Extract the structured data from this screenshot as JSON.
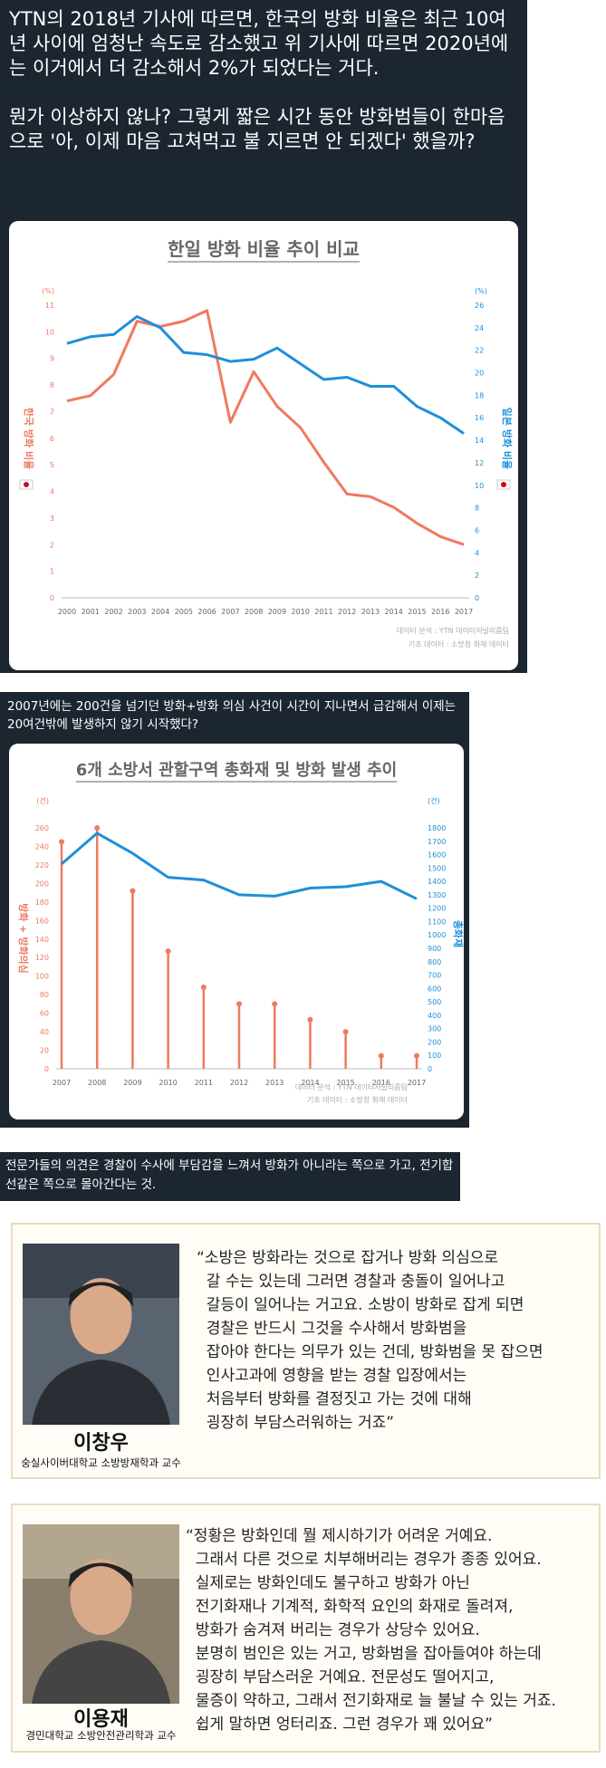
{
  "post1": {
    "paragraphs": [
      "YTN의 2018년 기사에 따르면, 한국의 방화 비율은 최근 10여 년 사이에 엄청난 속도로 감소했고 위 기사에 따르면 2020년에는 이거에서 더 감소해서 2%가 되었다는 거다.",
      "뭔가 이상하지 않나? 그렇게 짧은 시간 동안 방화범들이 한마음으로 '아, 이제 마음 고쳐먹고 불 지르면 안 되겠다' 했을까?"
    ]
  },
  "post2": {
    "text": "2007년에는 200건을 넘기던 방화+방화 의심 사건이 시간이 지나면서 급감해서 이제는 20여건밖에 발생하지 않기 시작했다?"
  },
  "post3": {
    "text": "전문가들의 의견은 경찰이 수사에 부담감을 느껴서 방화가 아니라는 쪽으로 가고, 전기합선같은 쪽으로 몰아간다는 것."
  },
  "chart_data": [
    {
      "type": "line",
      "title": "한일 방화 비율 추이 비교",
      "categories": [
        "2000",
        "2001",
        "2002",
        "2003",
        "2004",
        "2005",
        "2006",
        "2007",
        "2008",
        "2009",
        "2010",
        "2011",
        "2012",
        "2013",
        "2014",
        "2015",
        "2016",
        "2017"
      ],
      "series": [
        {
          "name": "한국 방화 비율",
          "color": "#ee7a5f",
          "axis": "y",
          "values": [
            7.4,
            7.6,
            8.4,
            10.4,
            10.2,
            10.4,
            10.8,
            6.6,
            8.5,
            7.2,
            6.4,
            5.1,
            3.9,
            3.8,
            3.4,
            2.8,
            2.3,
            2.0
          ]
        },
        {
          "name": "일본 방화 비율",
          "color": "#1f8fd8",
          "axis": "y2",
          "values": [
            22.6,
            23.2,
            23.4,
            25.0,
            24.0,
            21.8,
            21.6,
            21.0,
            21.2,
            22.2,
            20.8,
            19.4,
            19.6,
            18.8,
            18.8,
            17.0,
            16.0,
            14.6
          ]
        }
      ],
      "y_unit": "(%)",
      "y2_unit": "(%)",
      "ylim": [
        0,
        11
      ],
      "yticks": [
        0,
        1,
        2,
        3,
        4,
        5,
        6,
        7,
        8,
        9,
        10,
        11
      ],
      "y2lim": [
        0,
        26
      ],
      "y2ticks": [
        0,
        2,
        4,
        6,
        8,
        10,
        12,
        14,
        16,
        18,
        20,
        22,
        24,
        26
      ],
      "source": [
        "데이터 분석 : YTN 데이터저널리즘팀",
        "기초 데이터 : 소방청 화재 데이터"
      ]
    },
    {
      "type": "combo",
      "title": "6개 소방서 관할구역 총화재 및 방화 발생 추이",
      "categories": [
        "2007",
        "2008",
        "2009",
        "2010",
        "2011",
        "2012",
        "2013",
        "2014",
        "2015",
        "2016",
        "2017"
      ],
      "series": [
        {
          "name": "방화 + 방화의심",
          "type": "lollipop",
          "color": "#ee7a5f",
          "axis": "y",
          "values": [
            245,
            260,
            192,
            127,
            88,
            70,
            70,
            53,
            40,
            14,
            14
          ]
        },
        {
          "name": "총화재",
          "type": "line",
          "color": "#1f8fd8",
          "axis": "y2",
          "values": [
            1530,
            1760,
            1610,
            1430,
            1410,
            1300,
            1290,
            1350,
            1360,
            1400,
            1270
          ]
        }
      ],
      "y_unit": "(건)",
      "y2_unit": "(건)",
      "ylim": [
        0,
        260
      ],
      "yticks": [
        0,
        20,
        40,
        60,
        80,
        100,
        120,
        140,
        160,
        180,
        200,
        220,
        240,
        260
      ],
      "y2lim": [
        0,
        1800
      ],
      "y2ticks": [
        0,
        100,
        200,
        300,
        400,
        500,
        600,
        700,
        800,
        900,
        1000,
        1100,
        1200,
        1300,
        1400,
        1500,
        1600,
        1700,
        1800
      ],
      "source": [
        "데이터 분석 : YTN 데이터저널리즘팀",
        "기초 데이터 : 소방청 화재 데이터"
      ]
    }
  ],
  "quotes": [
    {
      "name": "이창우",
      "affiliation": "숭실사이버대학교 소방방재학과 교수",
      "lines": [
        "“소방은 방화라는 것으로 잡거나 방화 의심으로",
        "  갈 수는 있는데 그러면 경찰과 충돌이 일어나고",
        "  갈등이 일어나는 거고요. 소방이 방화로 잡게 되면",
        "  경찰은 반드시 그것을 수사해서 방화범을",
        "  잡아야 한다는 의무가 있는 건데, 방화범을 못 잡으면",
        "  인사고과에 영향을 받는 경찰 입장에서는",
        "  처음부터 방화를 결정짓고 가는 것에 대해",
        "  굉장히 부담스러워하는 거죠”"
      ]
    },
    {
      "name": "이용재",
      "affiliation": "경민대학교 소방안전관리학과 교수",
      "lines": [
        "“정황은 방화인데 뭘 제시하기가 어려운 거예요.",
        "  그래서 다른 것으로 치부해버리는 경우가 종종 있어요.",
        "  실제로는 방화인데도 불구하고 방화가 아닌",
        "  전기화재나 기계적, 화학적 요인의 화재로 돌려져,",
        "  방화가 숨겨져 버리는 경우가 상당수 있어요.",
        "  분명히 범인은 있는 거고, 방화범을 잡아들여야 하는데",
        "  굉장히 부담스러운 거예요. 전문성도 떨어지고,",
        "  물증이 약하고, 그래서 전기화재로 늘 불날 수 있는 거죠.",
        "  쉽게 말하면 엉터리죠. 그런 경우가 꽤 있어요”"
      ]
    }
  ]
}
